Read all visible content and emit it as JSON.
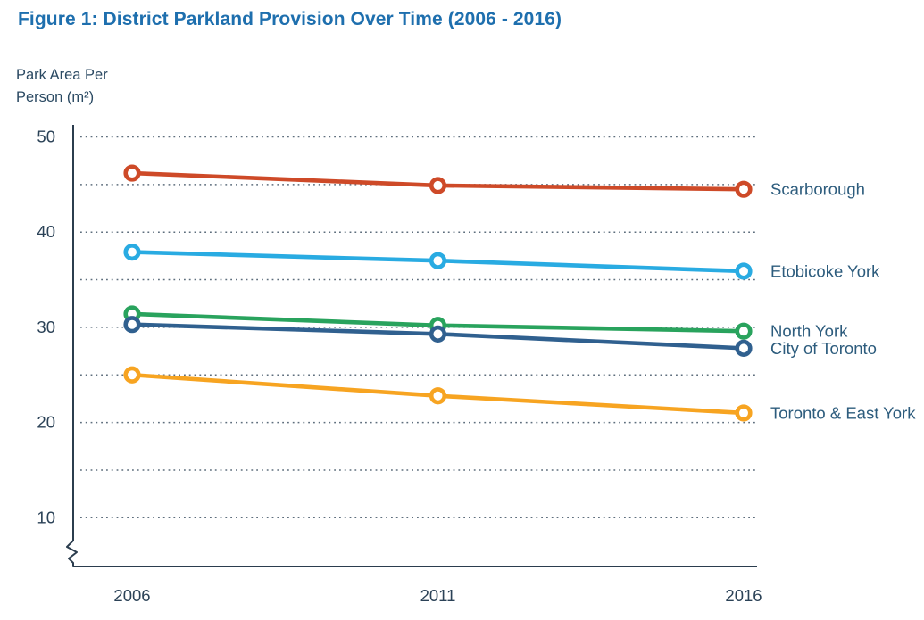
{
  "header": {
    "title": "Figure 1: District Parkland Provision Over Time (2006 - 2016)"
  },
  "axis": {
    "ylabel_line1": "Park Area Per",
    "ylabel_line2": "Person (m²)"
  },
  "chart_data": {
    "type": "line",
    "title": "Figure 1: District Parkland Provision Over Time (2006 - 2016)",
    "ylabel": "Park Area Per Person (m²)",
    "xlabel": "",
    "x": [
      2006,
      2011,
      2016
    ],
    "x_tick_labels": [
      "2006",
      "2011",
      "2016"
    ],
    "series": [
      {
        "name": "Scarborough",
        "color": "#CE4A28",
        "values": [
          46.2,
          44.9,
          44.5
        ]
      },
      {
        "name": "Etobicoke York",
        "color": "#29ABE2",
        "values": [
          37.9,
          37.0,
          35.9
        ]
      },
      {
        "name": "North York",
        "color": "#29A35D",
        "values": [
          31.4,
          30.2,
          29.6
        ]
      },
      {
        "name": "City of Toronto",
        "color": "#30608F",
        "values": [
          30.3,
          29.3,
          27.8
        ]
      },
      {
        "name": "Toronto & East York",
        "color": "#F7A421",
        "values": [
          25.0,
          22.8,
          21.0
        ]
      }
    ],
    "y_ticks_labeled": [
      50,
      40,
      30,
      20,
      10
    ],
    "y_gridlines": [
      50,
      45,
      40,
      35,
      30,
      25,
      20,
      15,
      10
    ],
    "ylim": [
      10,
      50
    ],
    "grid": "dotted-horizontal",
    "legend_position": "right-of-line-ends",
    "marker": "open-circle",
    "axis_break": true
  },
  "colors": {
    "title_text": "#1E6FAE",
    "body_text": "#2B4A63",
    "tick_text": "#2B4257",
    "series_label_text": "#2D5C7D",
    "axis_line": "#2B3D4E",
    "gridline": "#5E6E7D",
    "marker_fill": "#FFFFFF",
    "background": "#FFFFFF"
  }
}
